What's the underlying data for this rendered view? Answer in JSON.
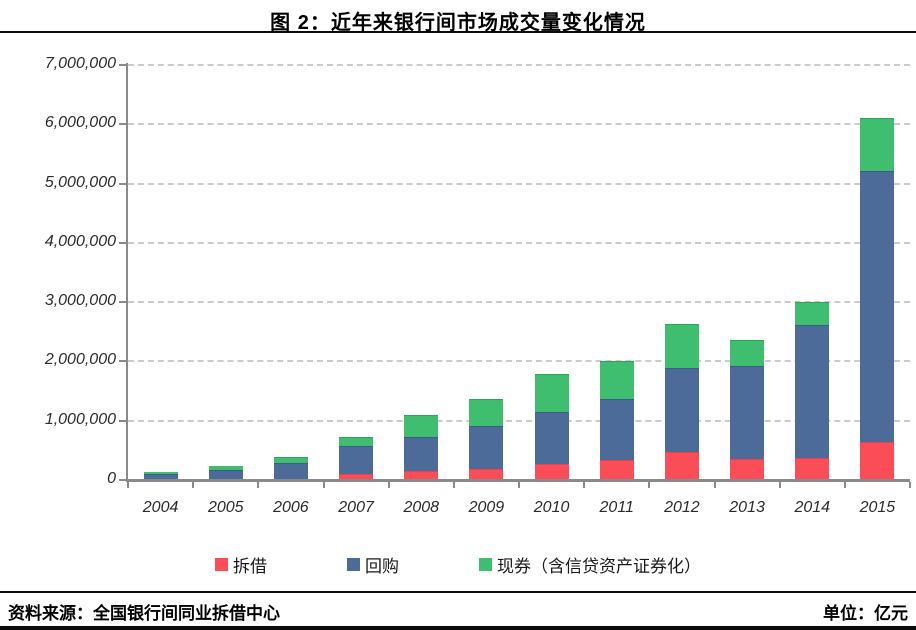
{
  "chart_data": {
    "type": "bar",
    "stacked": true,
    "title": "图 2：近年来银行间市场成交量变化情况",
    "unit_note": "单位：亿元",
    "source_note": "资料来源：全国银行间同业拆借中心",
    "categories": [
      "2004",
      "2005",
      "2006",
      "2007",
      "2008",
      "2009",
      "2010",
      "2011",
      "2012",
      "2013",
      "2014",
      "2015"
    ],
    "series": [
      {
        "name": "拆借",
        "color": "#FB4D57",
        "cap_color": "#E8444D",
        "values": [
          15000,
          13000,
          22000,
          106000,
          150000,
          194000,
          278000,
          334000,
          468000,
          355000,
          375000,
          642000
        ]
      },
      {
        "name": "回购",
        "color": "#4C6B99",
        "cap_color": "#3D5B86",
        "values": [
          95000,
          159000,
          268000,
          471000,
          583000,
          710000,
          875000,
          1033000,
          1416000,
          1575000,
          2233000,
          4578000
        ]
      },
      {
        "name": "现券（含信贷资产证券化）",
        "color": "#3EBE6E",
        "cap_color": "#2CA45D",
        "values": [
          25000,
          60000,
          103000,
          156000,
          371000,
          471000,
          641000,
          637000,
          752000,
          425000,
          402000,
          880000
        ]
      }
    ],
    "ylim": [
      0,
      7000000
    ],
    "y_ticks": [
      {
        "value": 0,
        "label": "0"
      },
      {
        "value": 1000000,
        "label": "1,000,000"
      },
      {
        "value": 2000000,
        "label": "2,000,000"
      },
      {
        "value": 3000000,
        "label": "3,000,000"
      },
      {
        "value": 4000000,
        "label": "4,000,000"
      },
      {
        "value": 5000000,
        "label": "5,000,000"
      },
      {
        "value": 6000000,
        "label": "6,000,000"
      },
      {
        "value": 7000000,
        "label": "7,000,000"
      }
    ],
    "grid": "horizontal-dashed",
    "legend_position": "bottom",
    "xlabel": "",
    "ylabel": ""
  }
}
